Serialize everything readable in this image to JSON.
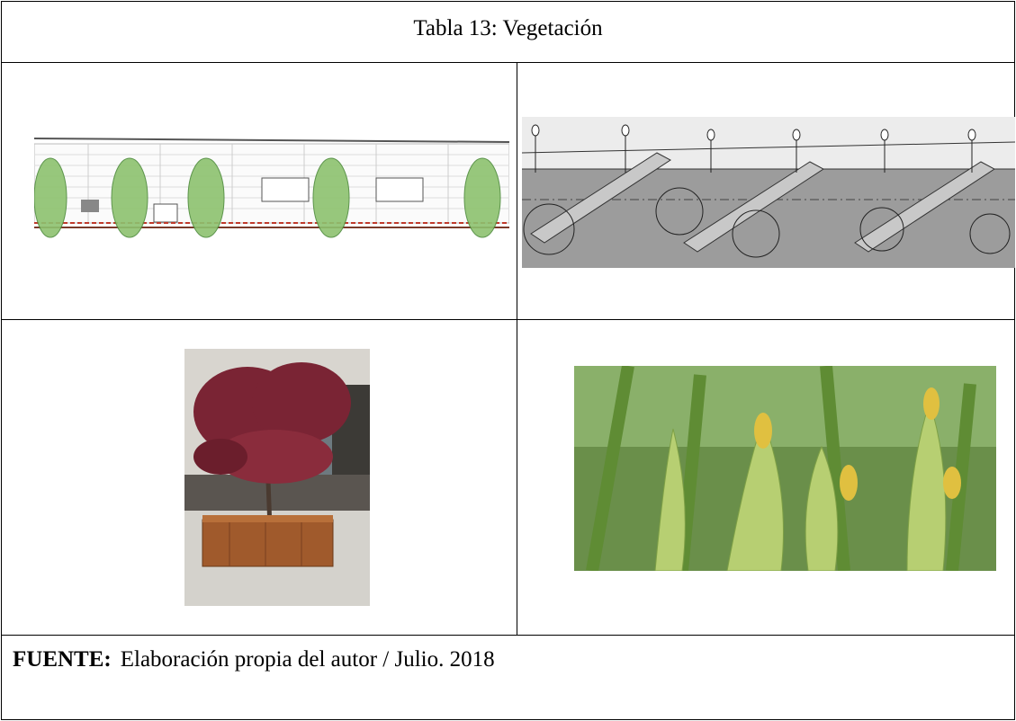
{
  "table": {
    "title": "Tabla 13: Vegetación",
    "footer": {
      "label": "FUENTE:",
      "text": "Elaboración propia del autor / Julio. 2018"
    }
  }
}
